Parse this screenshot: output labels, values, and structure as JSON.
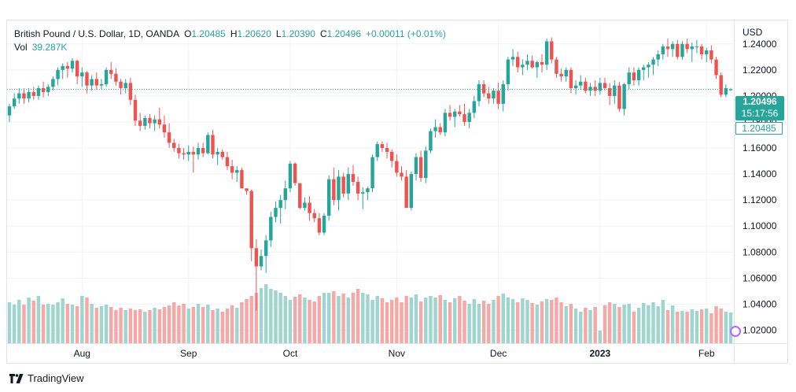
{
  "legend": {
    "symbol": "British Pound / U.S. Dollar, 1D, OANDA",
    "open_label": "O",
    "open": "1.20485",
    "high_label": "H",
    "high": "1.20620",
    "low_label": "L",
    "low": "1.20390",
    "close_label": "C",
    "close": "1.20496",
    "change": "+0.00011 (+0.01%)",
    "vol_label": "Vol",
    "vol": "39.287K"
  },
  "price_tag": {
    "price": "1.20496",
    "countdown": "15:17:56",
    "open_price": "1.20485"
  },
  "branding": {
    "name": "TradingView"
  },
  "colors": {
    "up": "#26a69a",
    "down": "#ef5350",
    "up_vol": "#9fd5cf",
    "down_vol": "#f5a8a6",
    "grid": "#f0f3fa",
    "axis_text": "#131722"
  },
  "chart_data": {
    "type": "candlestick",
    "currency": "USD",
    "y_ticks": [
      1.24,
      1.22,
      1.2,
      1.18,
      1.16,
      1.14,
      1.12,
      1.1,
      1.08,
      1.06,
      1.04,
      1.02
    ],
    "ylim": [
      1.01,
      1.258
    ],
    "x_labels": [
      {
        "label": "Aug",
        "index": 15
      },
      {
        "label": "Sep",
        "index": 37
      },
      {
        "label": "Oct",
        "index": 58
      },
      {
        "label": "Nov",
        "index": 80
      },
      {
        "label": "Dec",
        "index": 101
      },
      {
        "label": "2023",
        "index": 122,
        "bold": true
      },
      {
        "label": "Feb",
        "index": 144
      }
    ],
    "ohlcv": [
      [
        1.185,
        1.194,
        1.18,
        1.192,
        52
      ],
      [
        1.192,
        1.202,
        1.19,
        1.198,
        49
      ],
      [
        1.198,
        1.206,
        1.194,
        1.202,
        55
      ],
      [
        1.202,
        1.206,
        1.194,
        1.198,
        49
      ],
      [
        1.198,
        1.206,
        1.195,
        1.203,
        58
      ],
      [
        1.203,
        1.207,
        1.197,
        1.2,
        54
      ],
      [
        1.2,
        1.208,
        1.197,
        1.206,
        60
      ],
      [
        1.206,
        1.211,
        1.199,
        1.203,
        49
      ],
      [
        1.203,
        1.209,
        1.2,
        1.207,
        50
      ],
      [
        1.207,
        1.215,
        1.204,
        1.213,
        49
      ],
      [
        1.213,
        1.222,
        1.208,
        1.22,
        52
      ],
      [
        1.22,
        1.225,
        1.213,
        1.223,
        57
      ],
      [
        1.223,
        1.226,
        1.214,
        1.221,
        50
      ],
      [
        1.221,
        1.229,
        1.218,
        1.227,
        49
      ],
      [
        1.227,
        1.228,
        1.209,
        1.215,
        47
      ],
      [
        1.215,
        1.222,
        1.207,
        1.218,
        60
      ],
      [
        1.218,
        1.219,
        1.202,
        1.208,
        58
      ],
      [
        1.208,
        1.216,
        1.204,
        1.213,
        50
      ],
      [
        1.213,
        1.218,
        1.205,
        1.208,
        45
      ],
      [
        1.208,
        1.213,
        1.205,
        1.209,
        47
      ],
      [
        1.209,
        1.222,
        1.207,
        1.22,
        49
      ],
      [
        1.22,
        1.226,
        1.213,
        1.217,
        46
      ],
      [
        1.217,
        1.221,
        1.208,
        1.211,
        42
      ],
      [
        1.211,
        1.213,
        1.201,
        1.206,
        45
      ],
      [
        1.206,
        1.213,
        1.202,
        1.21,
        42
      ],
      [
        1.21,
        1.214,
        1.193,
        1.197,
        44
      ],
      [
        1.197,
        1.201,
        1.177,
        1.181,
        42
      ],
      [
        1.181,
        1.187,
        1.173,
        1.177,
        43
      ],
      [
        1.177,
        1.185,
        1.174,
        1.183,
        40
      ],
      [
        1.183,
        1.186,
        1.175,
        1.179,
        42
      ],
      [
        1.179,
        1.185,
        1.173,
        1.182,
        45
      ],
      [
        1.182,
        1.191,
        1.175,
        1.178,
        43
      ],
      [
        1.178,
        1.185,
        1.168,
        1.172,
        46
      ],
      [
        1.172,
        1.179,
        1.16,
        1.164,
        48
      ],
      [
        1.164,
        1.167,
        1.157,
        1.16,
        52
      ],
      [
        1.16,
        1.163,
        1.152,
        1.156,
        48
      ],
      [
        1.156,
        1.16,
        1.151,
        1.155,
        50
      ],
      [
        1.155,
        1.162,
        1.15,
        1.157,
        44
      ],
      [
        1.157,
        1.161,
        1.141,
        1.155,
        46
      ],
      [
        1.155,
        1.164,
        1.151,
        1.16,
        50
      ],
      [
        1.16,
        1.164,
        1.153,
        1.156,
        46
      ],
      [
        1.156,
        1.172,
        1.155,
        1.17,
        49
      ],
      [
        1.17,
        1.174,
        1.152,
        1.155,
        42
      ],
      [
        1.155,
        1.16,
        1.147,
        1.157,
        44
      ],
      [
        1.157,
        1.159,
        1.151,
        1.153,
        40
      ],
      [
        1.153,
        1.157,
        1.143,
        1.146,
        44
      ],
      [
        1.146,
        1.151,
        1.136,
        1.141,
        48
      ],
      [
        1.141,
        1.146,
        1.134,
        1.143,
        45
      ],
      [
        1.143,
        1.145,
        1.129,
        1.129,
        52
      ],
      [
        1.129,
        1.129,
        1.124,
        1.127,
        56
      ],
      [
        1.127,
        1.128,
        1.073,
        1.083,
        60
      ],
      [
        1.083,
        1.09,
        1.035,
        1.069,
        64
      ],
      [
        1.069,
        1.082,
        1.066,
        1.077,
        70
      ],
      [
        1.077,
        1.093,
        1.064,
        1.089,
        75
      ],
      [
        1.089,
        1.111,
        1.084,
        1.107,
        69
      ],
      [
        1.107,
        1.119,
        1.103,
        1.114,
        67
      ],
      [
        1.114,
        1.124,
        1.102,
        1.12,
        64
      ],
      [
        1.12,
        1.135,
        1.113,
        1.129,
        60
      ],
      [
        1.129,
        1.15,
        1.126,
        1.148,
        55
      ],
      [
        1.148,
        1.149,
        1.131,
        1.133,
        59
      ],
      [
        1.133,
        1.133,
        1.113,
        1.114,
        62
      ],
      [
        1.114,
        1.122,
        1.112,
        1.118,
        58
      ],
      [
        1.118,
        1.123,
        1.104,
        1.11,
        55
      ],
      [
        1.11,
        1.113,
        1.103,
        1.106,
        53
      ],
      [
        1.106,
        1.11,
        1.093,
        1.095,
        60
      ],
      [
        1.095,
        1.11,
        1.093,
        1.108,
        64
      ],
      [
        1.108,
        1.139,
        1.104,
        1.136,
        64
      ],
      [
        1.136,
        1.145,
        1.116,
        1.12,
        66
      ],
      [
        1.12,
        1.143,
        1.112,
        1.138,
        60
      ],
      [
        1.138,
        1.141,
        1.122,
        1.125,
        63
      ],
      [
        1.125,
        1.145,
        1.12,
        1.14,
        58
      ],
      [
        1.14,
        1.147,
        1.131,
        1.134,
        64
      ],
      [
        1.134,
        1.138,
        1.12,
        1.125,
        69
      ],
      [
        1.125,
        1.13,
        1.113,
        1.126,
        64
      ],
      [
        1.126,
        1.13,
        1.12,
        1.129,
        62
      ],
      [
        1.129,
        1.155,
        1.126,
        1.153,
        55
      ],
      [
        1.153,
        1.165,
        1.15,
        1.163,
        60
      ],
      [
        1.163,
        1.165,
        1.157,
        1.16,
        57
      ],
      [
        1.16,
        1.164,
        1.152,
        1.157,
        52
      ],
      [
        1.157,
        1.159,
        1.145,
        1.15,
        55
      ],
      [
        1.15,
        1.155,
        1.138,
        1.141,
        58
      ],
      [
        1.141,
        1.146,
        1.135,
        1.138,
        52
      ],
      [
        1.138,
        1.143,
        1.114,
        1.114,
        60
      ],
      [
        1.114,
        1.142,
        1.112,
        1.14,
        58
      ],
      [
        1.14,
        1.156,
        1.135,
        1.153,
        62
      ],
      [
        1.153,
        1.158,
        1.134,
        1.137,
        53
      ],
      [
        1.137,
        1.161,
        1.133,
        1.158,
        58
      ],
      [
        1.158,
        1.175,
        1.156,
        1.173,
        60
      ],
      [
        1.173,
        1.182,
        1.168,
        1.176,
        58
      ],
      [
        1.176,
        1.179,
        1.17,
        1.172,
        61
      ],
      [
        1.172,
        1.19,
        1.169,
        1.187,
        55
      ],
      [
        1.187,
        1.193,
        1.181,
        1.184,
        52
      ],
      [
        1.184,
        1.19,
        1.176,
        1.188,
        57
      ],
      [
        1.188,
        1.193,
        1.184,
        1.186,
        60
      ],
      [
        1.186,
        1.194,
        1.177,
        1.18,
        54
      ],
      [
        1.18,
        1.19,
        1.175,
        1.187,
        50
      ],
      [
        1.187,
        1.2,
        1.183,
        1.196,
        56
      ],
      [
        1.196,
        1.212,
        1.192,
        1.209,
        50
      ],
      [
        1.209,
        1.212,
        1.199,
        1.202,
        54
      ],
      [
        1.202,
        1.207,
        1.194,
        1.198,
        50
      ],
      [
        1.198,
        1.206,
        1.194,
        1.204,
        55
      ],
      [
        1.204,
        1.21,
        1.19,
        1.194,
        60
      ],
      [
        1.194,
        1.212,
        1.188,
        1.209,
        63
      ],
      [
        1.209,
        1.23,
        1.204,
        1.228,
        58
      ],
      [
        1.228,
        1.236,
        1.223,
        1.23,
        56
      ],
      [
        1.23,
        1.234,
        1.218,
        1.222,
        52
      ],
      [
        1.222,
        1.228,
        1.216,
        1.224,
        57
      ],
      [
        1.224,
        1.232,
        1.22,
        1.227,
        55
      ],
      [
        1.227,
        1.231,
        1.221,
        1.222,
        51
      ],
      [
        1.222,
        1.227,
        1.214,
        1.226,
        49
      ],
      [
        1.226,
        1.232,
        1.218,
        1.224,
        53
      ],
      [
        1.224,
        1.244,
        1.22,
        1.242,
        56
      ],
      [
        1.242,
        1.245,
        1.225,
        1.228,
        55
      ],
      [
        1.228,
        1.23,
        1.214,
        1.217,
        58
      ],
      [
        1.217,
        1.221,
        1.211,
        1.215,
        52
      ],
      [
        1.215,
        1.222,
        1.211,
        1.22,
        47
      ],
      [
        1.22,
        1.222,
        1.202,
        1.206,
        50
      ],
      [
        1.206,
        1.212,
        1.201,
        1.208,
        44
      ],
      [
        1.208,
        1.216,
        1.205,
        1.211,
        40
      ],
      [
        1.211,
        1.214,
        1.202,
        1.204,
        45
      ],
      [
        1.204,
        1.21,
        1.2,
        1.207,
        42
      ],
      [
        1.207,
        1.212,
        1.2,
        1.204,
        46
      ],
      [
        1.204,
        1.214,
        1.201,
        1.21,
        16
      ],
      [
        1.21,
        1.214,
        1.204,
        1.206,
        48
      ],
      [
        1.206,
        1.21,
        1.193,
        1.2,
        52
      ],
      [
        1.2,
        1.212,
        1.194,
        1.208,
        50
      ],
      [
        1.208,
        1.211,
        1.188,
        1.19,
        46
      ],
      [
        1.19,
        1.21,
        1.185,
        1.209,
        49
      ],
      [
        1.209,
        1.222,
        1.205,
        1.218,
        50
      ],
      [
        1.218,
        1.222,
        1.208,
        1.212,
        40
      ],
      [
        1.212,
        1.222,
        1.208,
        1.22,
        45
      ],
      [
        1.22,
        1.224,
        1.212,
        1.222,
        51
      ],
      [
        1.222,
        1.226,
        1.214,
        1.224,
        48
      ],
      [
        1.224,
        1.23,
        1.216,
        1.228,
        52
      ],
      [
        1.228,
        1.235,
        1.223,
        1.232,
        47
      ],
      [
        1.232,
        1.24,
        1.228,
        1.238,
        55
      ],
      [
        1.238,
        1.244,
        1.23,
        1.236,
        42
      ],
      [
        1.236,
        1.242,
        1.23,
        1.24,
        48
      ],
      [
        1.24,
        1.243,
        1.228,
        1.23,
        40
      ],
      [
        1.23,
        1.242,
        1.228,
        1.24,
        41
      ],
      [
        1.24,
        1.244,
        1.233,
        1.236,
        40
      ],
      [
        1.236,
        1.241,
        1.226,
        1.238,
        43
      ],
      [
        1.238,
        1.243,
        1.233,
        1.238,
        41
      ],
      [
        1.238,
        1.24,
        1.228,
        1.232,
        43
      ],
      [
        1.232,
        1.237,
        1.226,
        1.235,
        44
      ],
      [
        1.235,
        1.239,
        1.225,
        1.228,
        38
      ],
      [
        1.228,
        1.23,
        1.213,
        1.216,
        47
      ],
      [
        1.216,
        1.218,
        1.199,
        1.201,
        44
      ],
      [
        1.201,
        1.209,
        1.199,
        1.206,
        40
      ],
      [
        1.20485,
        1.2062,
        1.2039,
        1.20496,
        39
      ]
    ]
  }
}
